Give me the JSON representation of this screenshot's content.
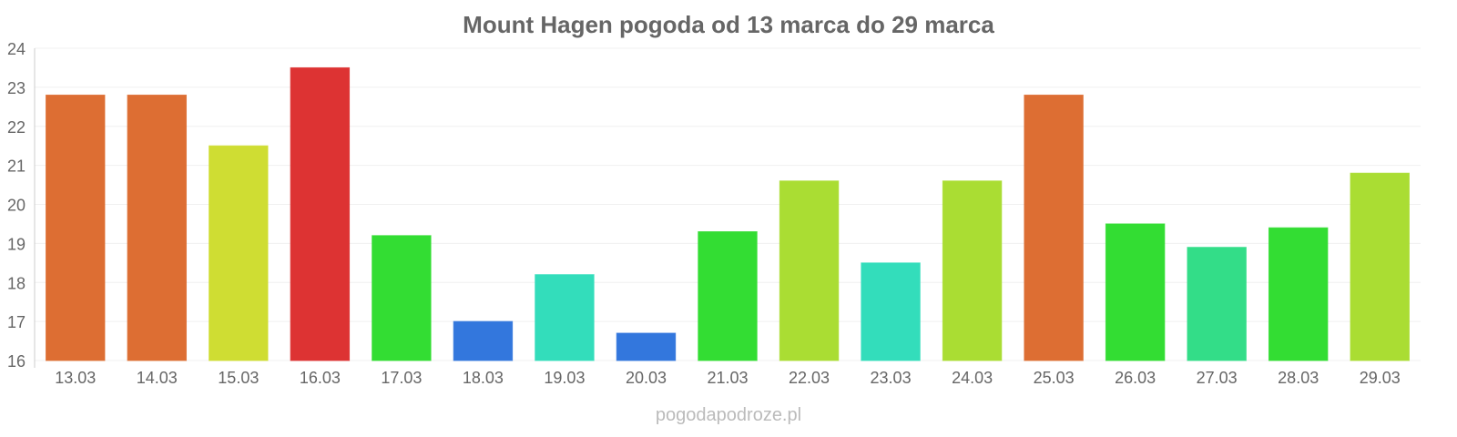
{
  "chart_data": {
    "type": "bar",
    "title": "Mount Hagen pogoda od 13 marca do 29 marca",
    "xlabel": "",
    "ylabel": "",
    "ylim": [
      16,
      24
    ],
    "yticks": [
      16,
      17,
      18,
      19,
      20,
      21,
      22,
      23,
      24
    ],
    "grid": true,
    "categories": [
      "13.03",
      "14.03",
      "15.03",
      "16.03",
      "17.03",
      "18.03",
      "19.03",
      "20.03",
      "21.03",
      "22.03",
      "23.03",
      "24.03",
      "25.03",
      "26.03",
      "27.03",
      "28.03",
      "29.03"
    ],
    "values": [
      22.8,
      22.8,
      21.5,
      23.5,
      19.2,
      17.0,
      18.2,
      16.7,
      19.3,
      20.6,
      18.5,
      20.6,
      22.8,
      19.5,
      18.9,
      19.4,
      20.8
    ],
    "colors": [
      "#dd6e33",
      "#dd6e33",
      "#cfdd33",
      "#dd3333",
      "#33dd33",
      "#3377dd",
      "#33ddbb",
      "#3377dd",
      "#33dd33",
      "#aadd33",
      "#33ddbb",
      "#aadd33",
      "#dd6e33",
      "#33dd33",
      "#33dd88",
      "#33dd33",
      "#aadd33"
    ]
  },
  "watermark": "pogodapodroze.pl"
}
